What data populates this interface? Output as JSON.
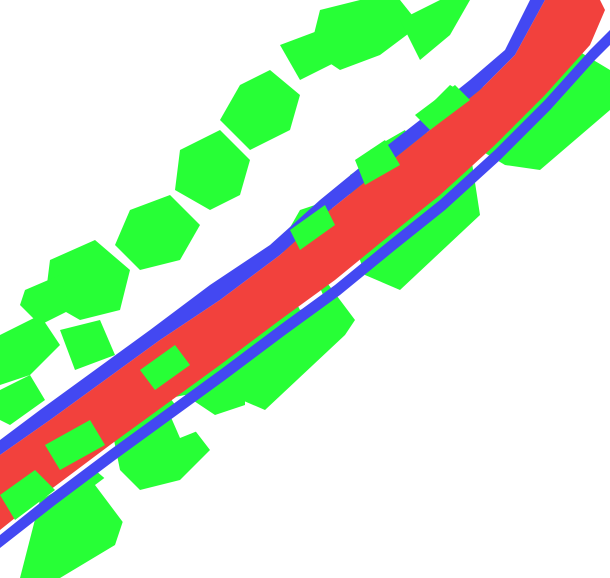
{
  "map": {
    "kind": "segmentation-mask",
    "background_color": "#ffffff",
    "classes": [
      {
        "id": "road",
        "color": "#f2413d"
      },
      {
        "id": "road-edge",
        "color": "#4348f2"
      },
      {
        "id": "vegetation",
        "color": "#27ff36"
      }
    ]
  }
}
